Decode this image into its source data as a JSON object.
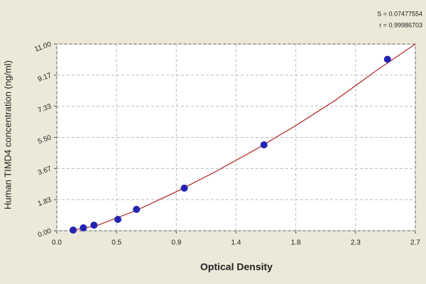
{
  "chart_data": {
    "type": "scatter",
    "xlabel": "Optical Density",
    "ylabel": "Human TIMD4 concentration (ng/ml)",
    "annotations": [
      "S = 0.07477554",
      "r = 0.99986703"
    ],
    "xlim": [
      0,
      2.7
    ],
    "ylim": [
      0,
      11
    ],
    "xticks": [
      {
        "value": 0,
        "label": "0.0"
      },
      {
        "value": 0.45,
        "label": "0.5"
      },
      {
        "value": 0.9,
        "label": "0.9"
      },
      {
        "value": 1.35,
        "label": "1.4"
      },
      {
        "value": 1.8,
        "label": "1.8"
      },
      {
        "value": 2.25,
        "label": "2.3"
      },
      {
        "value": 2.7,
        "label": "2.7"
      }
    ],
    "yticks": [
      {
        "value": 0,
        "label": "0.00"
      },
      {
        "value": 1.8333,
        "label": "1.83"
      },
      {
        "value": 3.6667,
        "label": "3.67"
      },
      {
        "value": 5.5,
        "label": "5.50"
      },
      {
        "value": 7.3333,
        "label": "7.33"
      },
      {
        "value": 9.1667,
        "label": "9.17"
      },
      {
        "value": 11,
        "label": "11.00"
      }
    ],
    "grid": true,
    "series": [
      {
        "kind": "points",
        "color": "#2323b4",
        "x": [
          0.123,
          0.2,
          0.28,
          0.46,
          0.6,
          0.96,
          1.56,
          2.49
        ],
        "values": [
          0.04,
          0.17,
          0.33,
          0.67,
          1.26,
          2.51,
          5.06,
          10.1
        ]
      },
      {
        "kind": "curve",
        "color": "#b43232",
        "x": [
          0.1,
          0.3,
          0.6,
          0.9,
          1.2,
          1.5,
          1.8,
          2.1,
          2.4,
          2.7
        ],
        "values": [
          0.0,
          0.3,
          1.2,
          2.3,
          3.5,
          4.8,
          6.2,
          7.7,
          9.4,
          11.0
        ]
      }
    ]
  }
}
